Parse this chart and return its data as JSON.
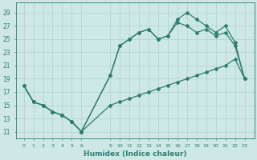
{
  "xlabel": "Humidex (Indice chaleur)",
  "bg_color": "#cde8e5",
  "grid_color": "#b8d8d5",
  "line_color": "#2e7d72",
  "line1_x": [
    0,
    1,
    2,
    3,
    4,
    5,
    6,
    9,
    10,
    11,
    12,
    13,
    14,
    15,
    16,
    17,
    18,
    19,
    20,
    21,
    22,
    23
  ],
  "line1_y": [
    18,
    15.5,
    15,
    14,
    13.5,
    12.5,
    11,
    19.5,
    24,
    25,
    26,
    26.5,
    25,
    25.5,
    28,
    29,
    28,
    27,
    26,
    27,
    24.5,
    19
  ],
  "line2_x": [
    0,
    1,
    2,
    3,
    4,
    5,
    6,
    9,
    10,
    11,
    12,
    13,
    14,
    15,
    16,
    17,
    18,
    19,
    20,
    21,
    22,
    23
  ],
  "line2_y": [
    18,
    15.5,
    15,
    14,
    13.5,
    12.5,
    11,
    19.5,
    24,
    25,
    26,
    26.5,
    25,
    25.5,
    27.5,
    27,
    26,
    26.5,
    25.5,
    26,
    24,
    19
  ],
  "line3_x": [
    0,
    1,
    2,
    3,
    4,
    5,
    6,
    9,
    10,
    11,
    12,
    13,
    14,
    15,
    16,
    17,
    18,
    19,
    20,
    21,
    22,
    23
  ],
  "line3_y": [
    18,
    15.5,
    15,
    14,
    13.5,
    12.5,
    11,
    15,
    15.5,
    16,
    16.5,
    17,
    17.5,
    18,
    18.5,
    19,
    19.5,
    20,
    20.5,
    21,
    22,
    19
  ],
  "xtick_vals": [
    0,
    1,
    2,
    3,
    4,
    5,
    6,
    9,
    10,
    11,
    12,
    13,
    14,
    15,
    16,
    17,
    18,
    19,
    20,
    21,
    22,
    23
  ],
  "xtick_labels": [
    "0",
    "1",
    "2",
    "3",
    "4",
    "5",
    "6",
    "9",
    "10",
    "11",
    "12",
    "13",
    "14",
    "15",
    "16",
    "17",
    "18",
    "19",
    "20",
    "21",
    "22",
    "23"
  ],
  "ytick_vals": [
    11,
    13,
    15,
    17,
    19,
    21,
    23,
    25,
    27,
    29
  ],
  "ytick_labels": [
    "11",
    "13",
    "15",
    "17",
    "19",
    "21",
    "23",
    "25",
    "27",
    "29"
  ],
  "xlim": [
    -0.8,
    24.0
  ],
  "ylim": [
    10.0,
    30.5
  ]
}
